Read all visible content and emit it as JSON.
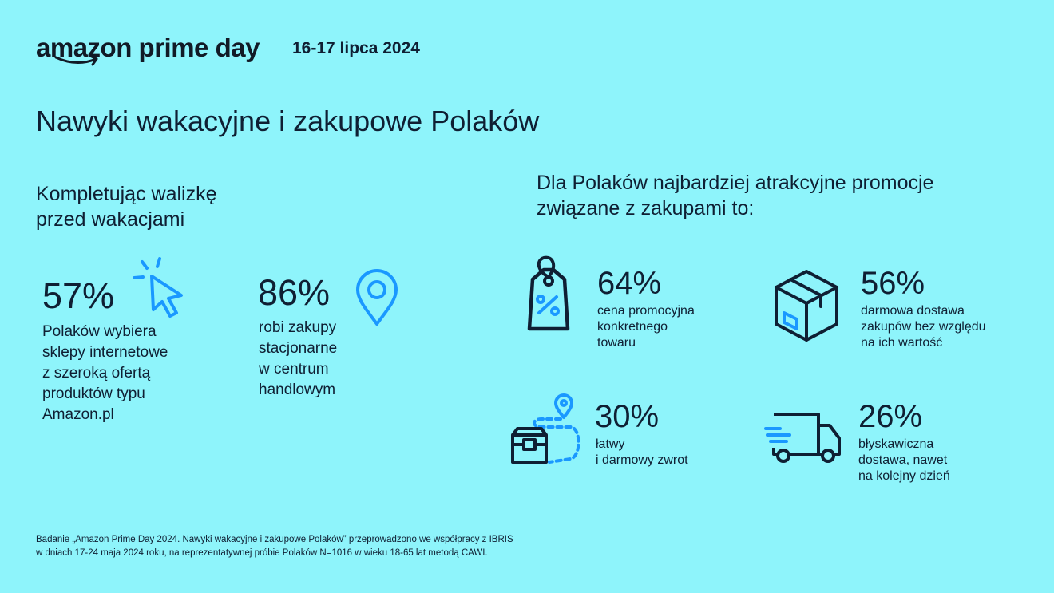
{
  "header": {
    "brand": "amazon prime day",
    "dates": "16-17 lipca 2024"
  },
  "title": "Nawyki wakacyjne i zakupowe Polaków",
  "left_section": {
    "heading_line1": "Kompletując walizkę",
    "heading_line2": "przed wakacjami",
    "stats": [
      {
        "value": "57%",
        "lines": [
          "Polaków wybiera",
          "sklepy internetowe",
          "z szeroką ofertą",
          "produktów typu",
          "Amazon.pl"
        ],
        "icon": "cursor-click-icon"
      },
      {
        "value": "86%",
        "lines": [
          "robi zakupy",
          "stacjonarne",
          "w centrum",
          "handlowym"
        ],
        "icon": "location-pin-icon"
      }
    ]
  },
  "right_section": {
    "heading_line1": "Dla Polaków najbardziej atrakcyjne promocje",
    "heading_line2": "związane z zakupami to:",
    "stats": [
      {
        "value": "64%",
        "lines": [
          "cena promocyjna",
          "konkretnego",
          "towaru"
        ],
        "icon": "price-tag-icon"
      },
      {
        "value": "56%",
        "lines": [
          "darmowa dostawa",
          "zakupów bez względu",
          "na ich wartość"
        ],
        "icon": "box-icon"
      },
      {
        "value": "30%",
        "lines": [
          "łatwy",
          "i darmowy zwrot"
        ],
        "icon": "return-route-icon"
      },
      {
        "value": "26%",
        "lines": [
          "błyskawiczna",
          "dostawa, nawet",
          "na kolejny dzień"
        ],
        "icon": "delivery-truck-icon"
      }
    ]
  },
  "footnote": {
    "line1": "Badanie „Amazon Prime Day 2024. Nawyki wakacyjne i zakupowe Polaków” przeprowadzono we współpracy z IBRIS",
    "line2": "w dniach 17-24 maja 2024 roku, na reprezentatywnej próbie Polaków N=1016 w wieku 18-65 lat metodą CAWI."
  },
  "colors": {
    "background": "#8ef4fb",
    "text": "#0f1f33",
    "accent": "#1a98ff"
  }
}
